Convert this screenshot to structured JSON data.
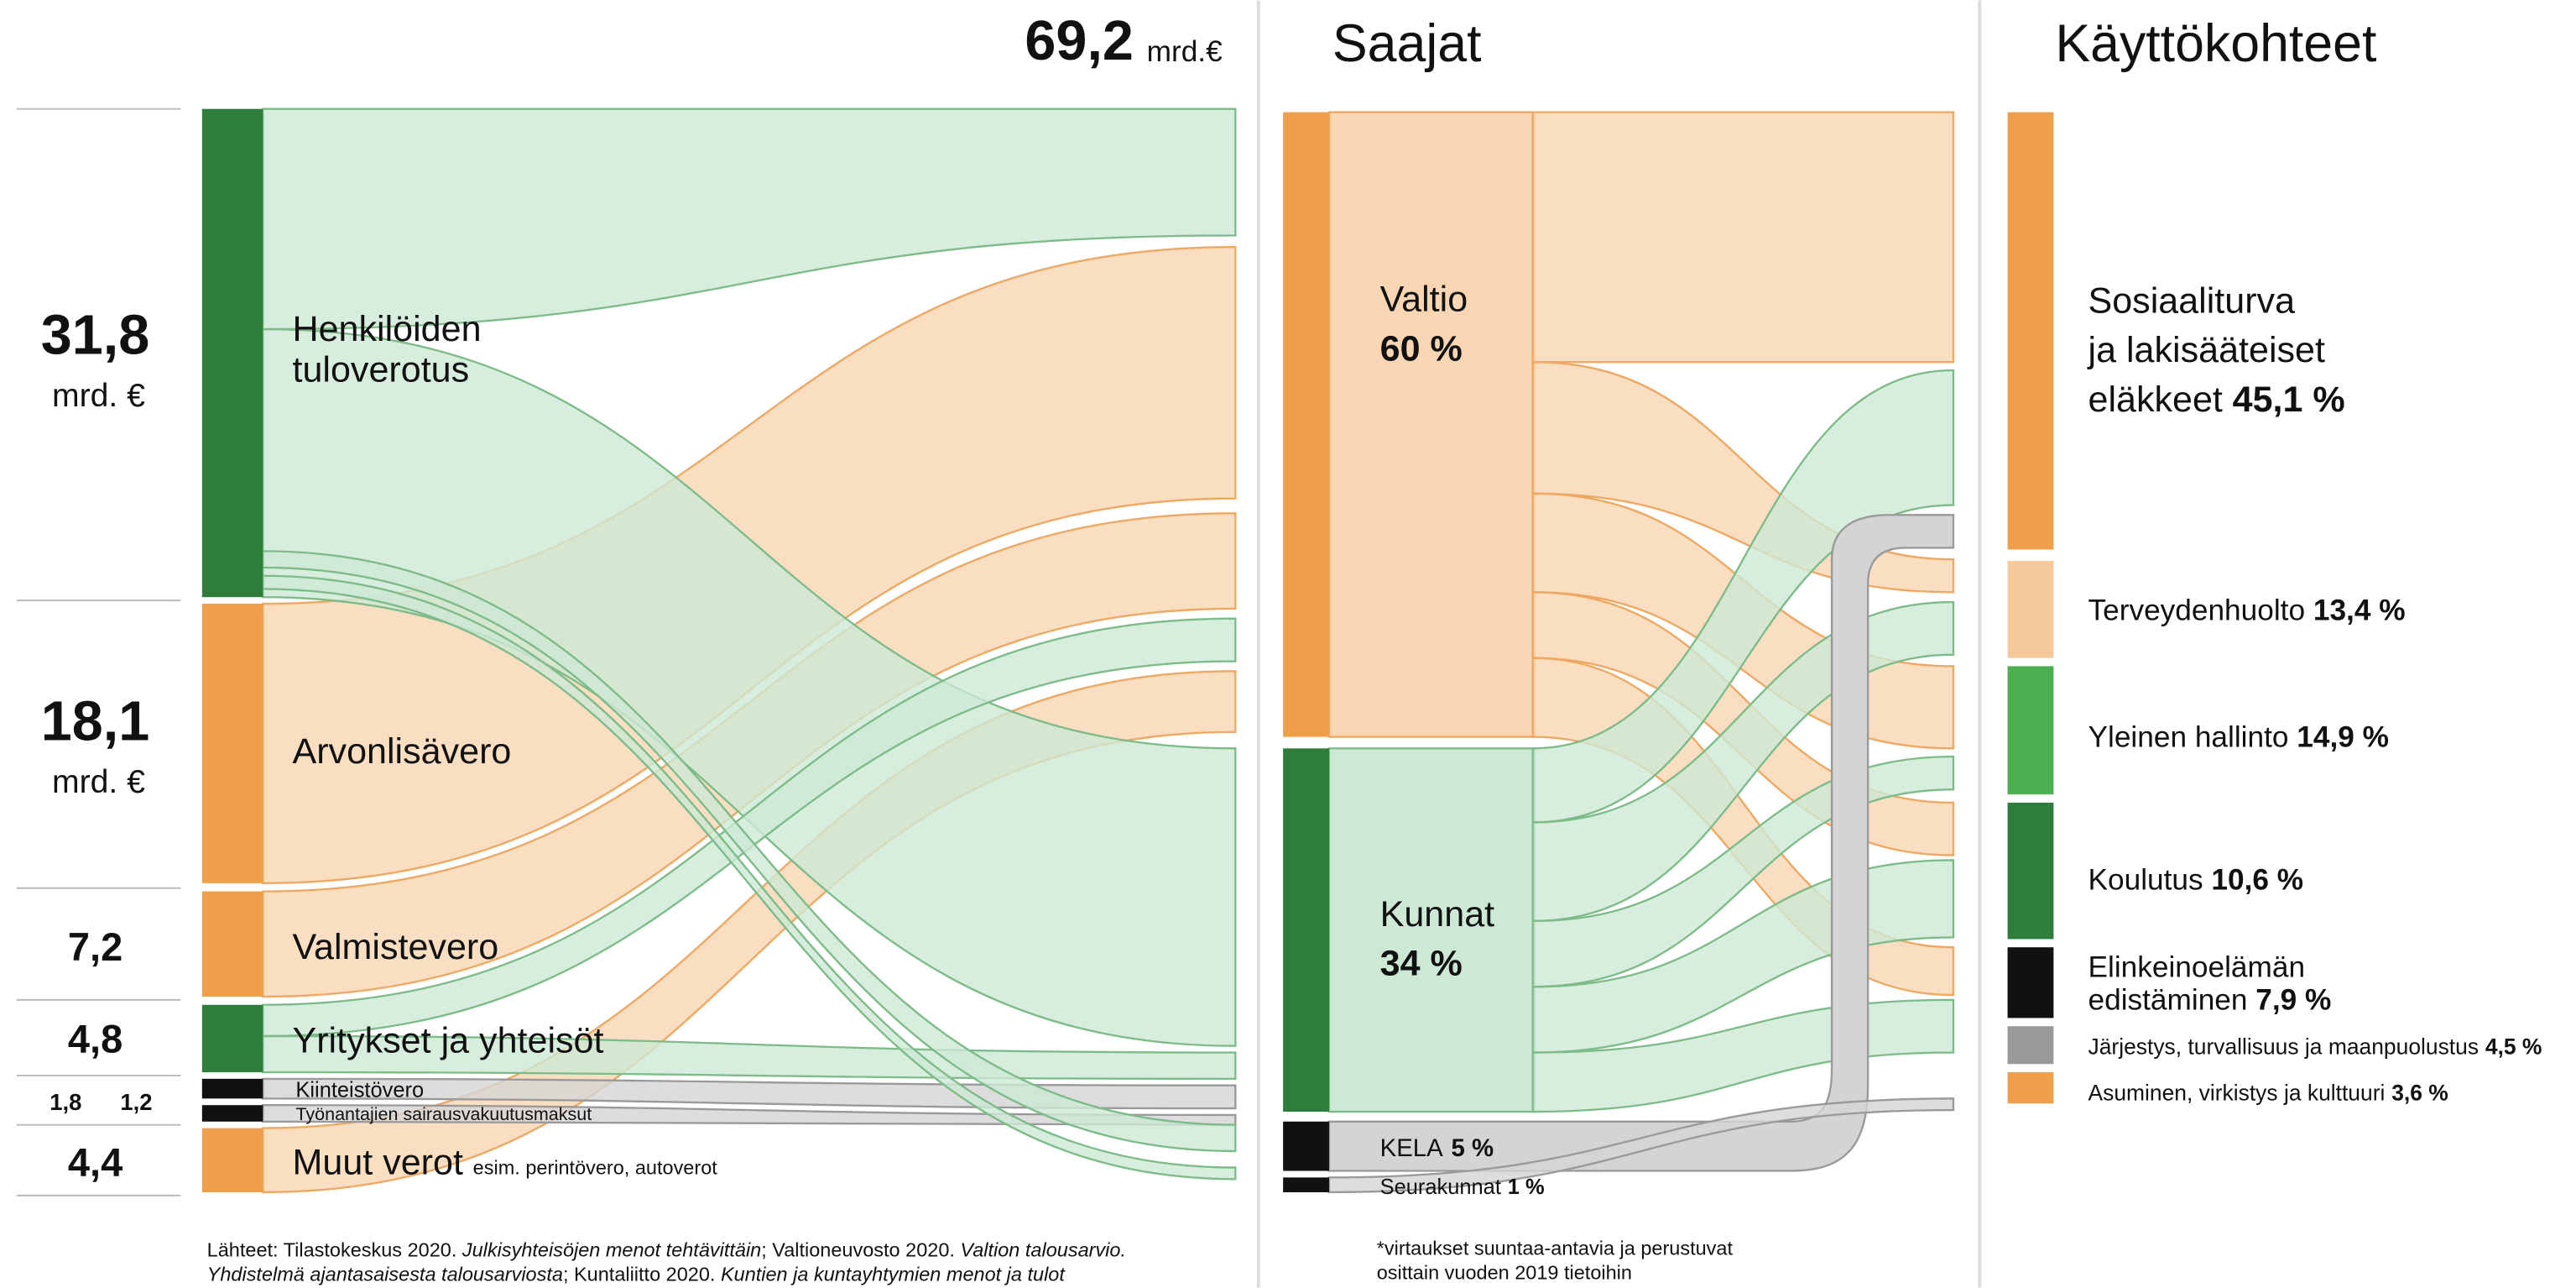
{
  "header": {
    "total": "69,2",
    "unit": "mrd.€",
    "recipients_title": "Saajat",
    "uses_title": "Käyttökohteet"
  },
  "sources": [
    {
      "value": "31,8",
      "unit": "mrd. €",
      "name_lines": [
        "Henkilöiden",
        "tuloverotus"
      ]
    },
    {
      "value": "18,1",
      "unit": "mrd. €",
      "name": "Arvonlisävero"
    },
    {
      "value": "7,2",
      "name": "Valmistevero"
    },
    {
      "value": "4,8",
      "name": "Yritykset ja yhteisöt"
    },
    {
      "value": "1,8",
      "name": "Kiinteistövero"
    },
    {
      "value": "1,2",
      "name": "Työnantajien sairausvakuutusmaksut"
    },
    {
      "value": "4,4",
      "name": "Muut verot",
      "note": "esim. perintövero, autoverot"
    }
  ],
  "recipients": [
    {
      "name": "Valtio",
      "share": "60 %"
    },
    {
      "name": "Kunnat",
      "share": "34 %"
    },
    {
      "name": "KELA",
      "share": "5 %"
    },
    {
      "name": "Seurakunnat",
      "share": "1 %"
    }
  ],
  "uses": [
    {
      "name_lines": [
        "Sosiaaliturva",
        "ja lakisääteiset",
        "eläkkeet"
      ],
      "share": "45,1 %"
    },
    {
      "name": "Terveydenhuolto",
      "share": "13,4 %"
    },
    {
      "name": "Yleinen hallinto",
      "share": "14,9 %"
    },
    {
      "name": "Koulutus",
      "share": "10,6 %"
    },
    {
      "name_lines": [
        "Elinkeinoelämän",
        "edistäminen"
      ],
      "share": "7,9 %"
    },
    {
      "name": "Järjestys, turvallisuus ja maanpuolustus",
      "share": "4,5 %"
    },
    {
      "name": "Asuminen, virkistys ja kulttuuri",
      "share": "3,6 %"
    }
  ],
  "sources_note": {
    "line1": [
      "Lähteet: Tilastokeskus 2020. ",
      "Julkisyhteisöjen menot tehtävittäin",
      "; Valtioneuvosto 2020. ",
      "Valtion talousarvio."
    ],
    "line2": [
      "Yhdistelmä ajantasaisesta talousarviosta",
      "; Kuntaliitto 2020. ",
      "Kuntien ja kuntayhtymien menot ja tulot"
    ]
  },
  "footnote": {
    "lines": [
      "*virtaukset suuntaa-antavia ja perustuvat",
      "osittain vuoden 2019 tietoihin"
    ]
  }
}
